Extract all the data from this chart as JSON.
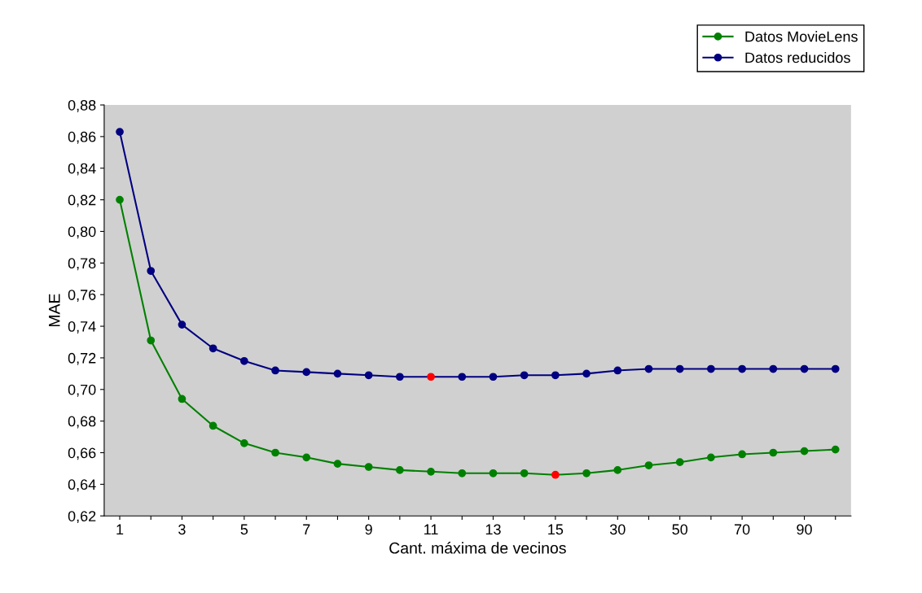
{
  "chart_data": {
    "type": "line",
    "xlabel": "Cant. máxima de vecinos",
    "ylabel": "MAE",
    "categories": [
      "1",
      null,
      "3",
      null,
      "5",
      null,
      "7",
      null,
      "9",
      null,
      "11",
      null,
      "13",
      null,
      "15",
      null,
      "30",
      null,
      "50",
      null,
      "70",
      null,
      "90",
      null
    ],
    "series": [
      {
        "name": "Datos MovieLens",
        "color": "#008000",
        "colors": [
          "#008000",
          "#008000",
          "#008000",
          "#008000",
          "#008000",
          "#008000",
          "#008000",
          "#008000",
          "#008000",
          "#008000",
          "#008000",
          "#008000",
          "#008000",
          "#008000",
          "#ff0000",
          "#008000",
          "#008000",
          "#008000",
          "#008000",
          "#008000",
          "#008000",
          "#008000",
          "#008000",
          "#008000"
        ],
        "values": [
          0.82,
          0.731,
          0.694,
          0.677,
          0.666,
          0.66,
          0.657,
          0.653,
          0.651,
          0.649,
          0.648,
          0.647,
          0.647,
          0.647,
          0.646,
          0.647,
          0.649,
          0.652,
          0.654,
          0.657,
          0.659,
          0.66,
          0.661,
          0.662
        ]
      },
      {
        "name": "Datos reducidos",
        "color": "#000080",
        "colors": [
          "#000080",
          "#000080",
          "#000080",
          "#000080",
          "#000080",
          "#000080",
          "#000080",
          "#000080",
          "#000080",
          "#000080",
          "#ff0000",
          "#000080",
          "#000080",
          "#000080",
          "#000080",
          "#000080",
          "#000080",
          "#000080",
          "#000080",
          "#000080",
          "#000080",
          "#000080",
          "#000080",
          "#000080"
        ],
        "values": [
          0.863,
          0.775,
          0.741,
          0.726,
          0.718,
          0.712,
          0.711,
          0.71,
          0.709,
          0.708,
          0.708,
          0.708,
          0.708,
          0.709,
          0.709,
          0.71,
          0.712,
          0.713,
          0.713,
          0.713,
          0.713,
          0.713,
          0.713,
          0.713
        ]
      }
    ],
    "ylim": [
      0.62,
      0.88
    ],
    "yticks": [
      {
        "value": 0.62,
        "label": "0,62"
      },
      {
        "value": 0.64,
        "label": "0,64"
      },
      {
        "value": 0.66,
        "label": "0,66"
      },
      {
        "value": 0.68,
        "label": "0,68"
      },
      {
        "value": 0.7,
        "label": "0,70"
      },
      {
        "value": 0.72,
        "label": "0,72"
      },
      {
        "value": 0.74,
        "label": "0,74"
      },
      {
        "value": 0.76,
        "label": "0,76"
      },
      {
        "value": 0.78,
        "label": "0,78"
      },
      {
        "value": 0.8,
        "label": "0,80"
      },
      {
        "value": 0.82,
        "label": "0,82"
      },
      {
        "value": 0.84,
        "label": "0,84"
      },
      {
        "value": 0.86,
        "label": "0,86"
      },
      {
        "value": 0.88,
        "label": "0,88"
      }
    ],
    "marker": "circle",
    "line_style": "solid",
    "grid": false,
    "legend": "top right"
  }
}
